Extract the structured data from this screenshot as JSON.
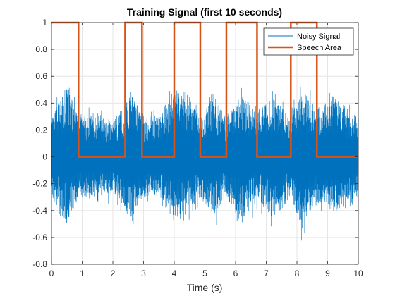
{
  "chart_data": {
    "type": "line",
    "title": "Training Signal (first 10 seconds)",
    "xlabel": "Time (s)",
    "ylabel": "",
    "xlim": [
      0,
      10
    ],
    "ylim": [
      -0.8,
      1
    ],
    "xticks": [
      0,
      1,
      2,
      3,
      4,
      5,
      6,
      7,
      8,
      9,
      10
    ],
    "yticks": [
      -0.8,
      -0.6,
      -0.4,
      -0.2,
      0,
      0.2,
      0.4,
      0.6,
      0.8,
      1
    ],
    "xtick_labels": [
      "0",
      "1",
      "2",
      "3",
      "4",
      "5",
      "6",
      "7",
      "8",
      "9",
      "10"
    ],
    "ytick_labels": [
      "-0.8",
      "-0.6",
      "-0.4",
      "-0.2",
      "0",
      "0.2",
      "0.4",
      "0.6",
      "0.8",
      "1"
    ],
    "grid": true,
    "legend_position": "top-right",
    "series": [
      {
        "name": "Noisy Signal",
        "color": "#0072BD",
        "style": "dense noise",
        "envelope": {
          "x": [
            0,
            0.3,
            0.5,
            0.9,
            1.5,
            2.0,
            2.4,
            2.6,
            2.95,
            3.5,
            4.0,
            4.4,
            4.85,
            5.3,
            5.7,
            6.2,
            6.7,
            7.2,
            7.8,
            8.2,
            8.65,
            9.2,
            10
          ],
          "upper": [
            0.28,
            0.45,
            0.52,
            0.32,
            0.3,
            0.3,
            0.38,
            0.5,
            0.3,
            0.32,
            0.5,
            0.48,
            0.3,
            0.45,
            0.3,
            0.48,
            0.32,
            0.45,
            0.3,
            0.5,
            0.35,
            0.45,
            0.3
          ],
          "lower": [
            -0.3,
            -0.45,
            -0.5,
            -0.3,
            -0.3,
            -0.28,
            -0.38,
            -0.5,
            -0.3,
            -0.3,
            -0.48,
            -0.45,
            -0.3,
            -0.45,
            -0.3,
            -0.5,
            -0.3,
            -0.48,
            -0.3,
            -0.55,
            -0.35,
            -0.42,
            -0.3
          ],
          "peak_max": [
            0.6,
            0.65,
            0.55,
            0.4,
            0.35,
            0.35,
            0.45,
            0.58,
            0.35,
            0.35,
            0.6,
            0.55,
            0.35,
            0.5,
            0.35,
            0.55,
            0.4,
            0.5,
            0.35,
            0.65,
            0.4,
            0.5,
            0.35
          ],
          "peak_min": [
            -0.5,
            -0.58,
            -0.55,
            -0.4,
            -0.35,
            -0.35,
            -0.45,
            -0.55,
            -0.35,
            -0.35,
            -0.55,
            -0.5,
            -0.35,
            -0.6,
            -0.35,
            -0.6,
            -0.4,
            -0.55,
            -0.35,
            -0.67,
            -0.4,
            -0.5,
            -0.35
          ]
        }
      },
      {
        "name": "Speech Area",
        "color": "#D95319",
        "x": [
          0,
          0.88,
          0.88,
          2.4,
          2.4,
          2.95,
          2.95,
          4.0,
          4.0,
          4.85,
          4.85,
          5.7,
          5.7,
          6.7,
          6.7,
          7.8,
          7.8,
          8.65,
          8.65,
          10
        ],
        "y": [
          1,
          1,
          0,
          0,
          1,
          1,
          0,
          0,
          1,
          1,
          0,
          0,
          1,
          1,
          0,
          0,
          1,
          1,
          0,
          0
        ]
      }
    ]
  }
}
